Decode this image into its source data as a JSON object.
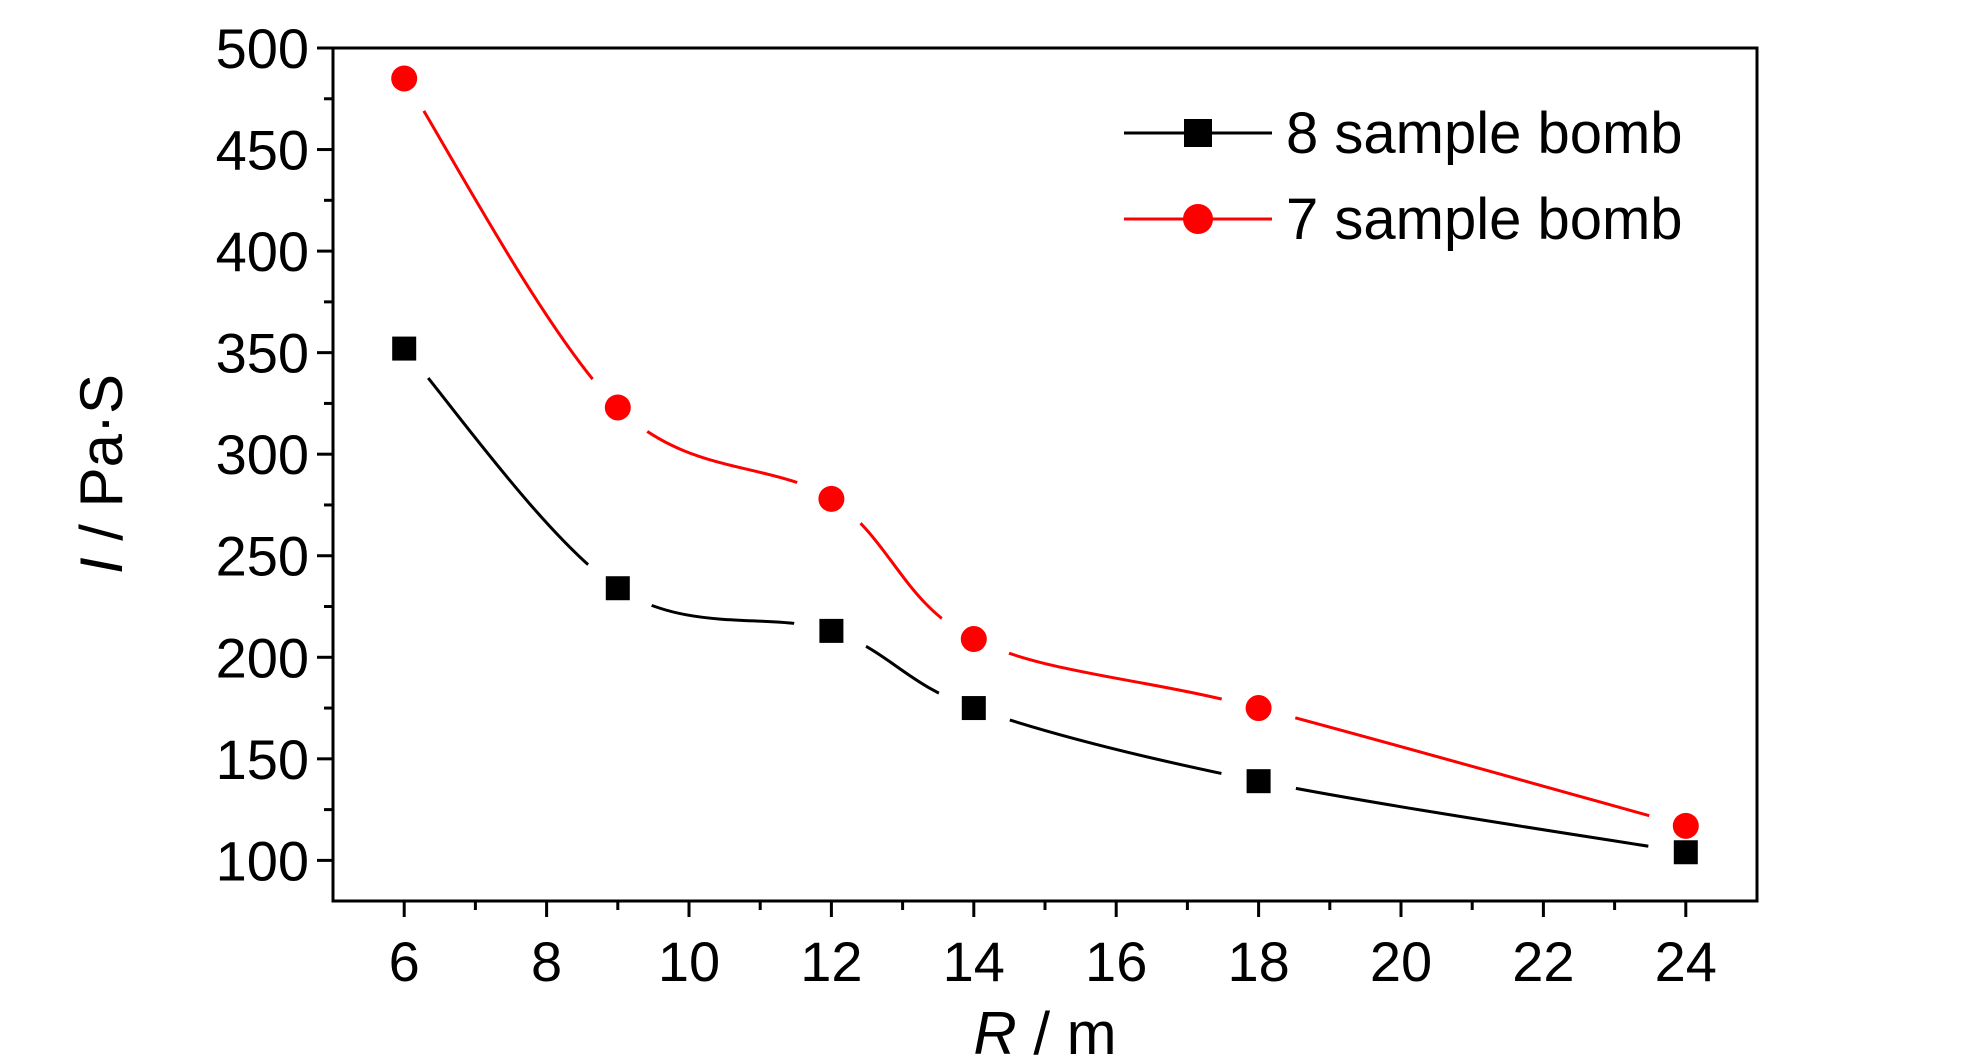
{
  "chart_data": {
    "type": "line",
    "xlabel": {
      "symbol": "R",
      "unit": " / m"
    },
    "ylabel": {
      "symbol": "I",
      "unit": " / Pa·S"
    },
    "xlim": [
      5,
      25
    ],
    "ylim": [
      80,
      500
    ],
    "xticks": [
      6,
      8,
      10,
      12,
      14,
      16,
      18,
      20,
      22,
      24
    ],
    "yticks": [
      100,
      150,
      200,
      250,
      300,
      350,
      400,
      450,
      500
    ],
    "grid": false,
    "legend_position": "top-right",
    "x": [
      6,
      9,
      12,
      14,
      18,
      24
    ],
    "series": [
      {
        "name": "8 sample bomb",
        "marker": "square",
        "color": "#000000",
        "values": [
          352,
          234,
          213,
          175,
          139,
          104
        ]
      },
      {
        "name": "7 sample bomb",
        "marker": "circle",
        "color": "#ff0000",
        "values": [
          485,
          323,
          278,
          209,
          175,
          117
        ]
      }
    ]
  }
}
